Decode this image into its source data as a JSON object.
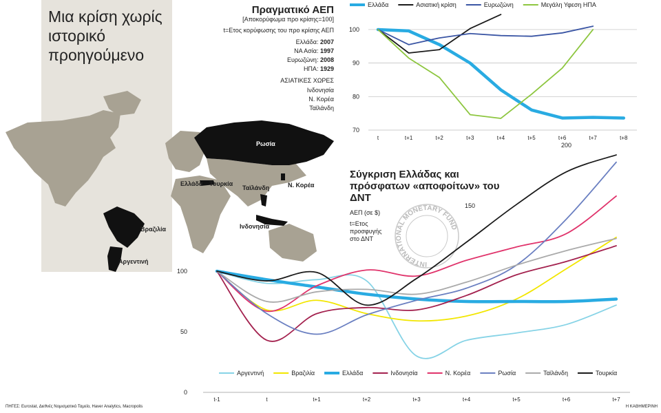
{
  "title": "Μια κρίση χωρίς ιστορικό προηγούμενο",
  "map_labels": [
    "Ρωσία",
    "Ελλάδα",
    "Τουρκία",
    "Ταϊλάνδη",
    "Ν. Κορέα",
    "Ινδονησία",
    "Βραζιλία",
    "Αργεντινή"
  ],
  "seal": "INTERNATIONAL MONETARY FUND",
  "source": "ΠΗΓΕΣ: Eurostat, Διεθνές Νομισματικό Ταμείο, Haver Analytics, Macropolis",
  "credit": "Η ΚΑΘΗΜΕΡΙΝΗ",
  "chart_data": [
    {
      "type": "line",
      "title": "Πραγματικό ΑΕΠ",
      "subtitle": "[Αποκορύφωμα προ κρίσης=100]",
      "note": "t=Ετος κορύφωσης του προ κρίσης ΑΕΠ",
      "peaks": [
        {
          "name": "Ελλάδα:",
          "year": 2007
        },
        {
          "name": "ΝΑ Ασία:",
          "year": 1997
        },
        {
          "name": "Ευρωζώνη:",
          "year": 2008
        },
        {
          "name": "ΗΠΑ:",
          "year": 1929
        }
      ],
      "group_title": "ΑΣΙΑΤΙΚΕΣ ΧΩΡΕΣ",
      "group": [
        "Ινδονησία",
        "Ν. Κορέα",
        "Ταϊλάνδη"
      ],
      "categories": [
        "t",
        "t+1",
        "t+2",
        "t+3",
        "t+4",
        "t+5",
        "t+6",
        "t+7",
        "t+8"
      ],
      "ylim": [
        70,
        105
      ],
      "yticks": [
        70,
        80,
        90,
        100
      ],
      "grid": true,
      "series": [
        {
          "name": "Ελλάδα",
          "color": "#29abe2",
          "emphasis": true,
          "values": [
            100,
            99.6,
            95.5,
            90,
            82,
            76,
            73.6,
            73.8,
            73.6
          ]
        },
        {
          "name": "Ασιατική κρίση",
          "color": "#1a1a1a",
          "values": [
            100,
            93,
            94,
            100.3,
            104.5,
            null,
            null,
            null,
            null
          ]
        },
        {
          "name": "Ευρωζώνη",
          "color": "#3a55a4",
          "values": [
            100,
            95.5,
            97.5,
            98.8,
            98.2,
            98,
            99,
            101,
            null
          ]
        },
        {
          "name": "Μεγάλη Υφεση ΗΠΑ",
          "color": "#8dc63f",
          "values": [
            100,
            91.5,
            85.7,
            74.6,
            73.5,
            80.7,
            88.5,
            100,
            null
          ]
        }
      ]
    },
    {
      "type": "line",
      "title": "Σύγκριση Ελλάδας και πρόσφατων «αποφοίτων» του ΔΝΤ",
      "subtitle": "ΑΕΠ (σε $)",
      "note": "t=Ετος προσφυγής στο ΔΝΤ",
      "smooth": true,
      "categories": [
        "t-1",
        "t",
        "t+1",
        "t+2",
        "t+3",
        "t+4",
        "t+5",
        "t+6",
        "t+7"
      ],
      "ylim": [
        0,
        200
      ],
      "yticks": [
        0,
        50,
        100,
        150,
        200
      ],
      "grid": false,
      "series": [
        {
          "name": "Αργεντινή",
          "color": "#86d3e6",
          "values": [
            100,
            90,
            93,
            92,
            30,
            43,
            49,
            56,
            72
          ]
        },
        {
          "name": "Βραζιλία",
          "color": "#f2e600",
          "values": [
            100,
            68,
            76,
            65,
            59,
            63,
            77,
            102,
            128
          ]
        },
        {
          "name": "Ελλάδα",
          "color": "#29abe2",
          "emphasis": true,
          "values": [
            100,
            93,
            87,
            81,
            77,
            75,
            75,
            75,
            77
          ]
        },
        {
          "name": "Ινδονησία",
          "color": "#a3214e",
          "values": [
            100,
            43,
            65,
            70,
            68,
            80,
            97,
            108,
            121
          ]
        },
        {
          "name": "Ν. Κορέα",
          "color": "#e0336b",
          "values": [
            100,
            67,
            88,
            101,
            96,
            109,
            120,
            131,
            162
          ]
        },
        {
          "name": "Ρωσία",
          "color": "#6a7fc1",
          "values": [
            100,
            65,
            48,
            64,
            76,
            86,
            105,
            143,
            190
          ]
        },
        {
          "name": "Ταϊλάνδη",
          "color": "#aaaaaa",
          "values": [
            100,
            75,
            83,
            85,
            81,
            91,
            105,
            117,
            127
          ]
        },
        {
          "name": "Τουρκία",
          "color": "#1a1a1a",
          "values": [
            100,
            92,
            99,
            72,
            94,
            124,
            155,
            182,
            196
          ]
        }
      ]
    }
  ]
}
